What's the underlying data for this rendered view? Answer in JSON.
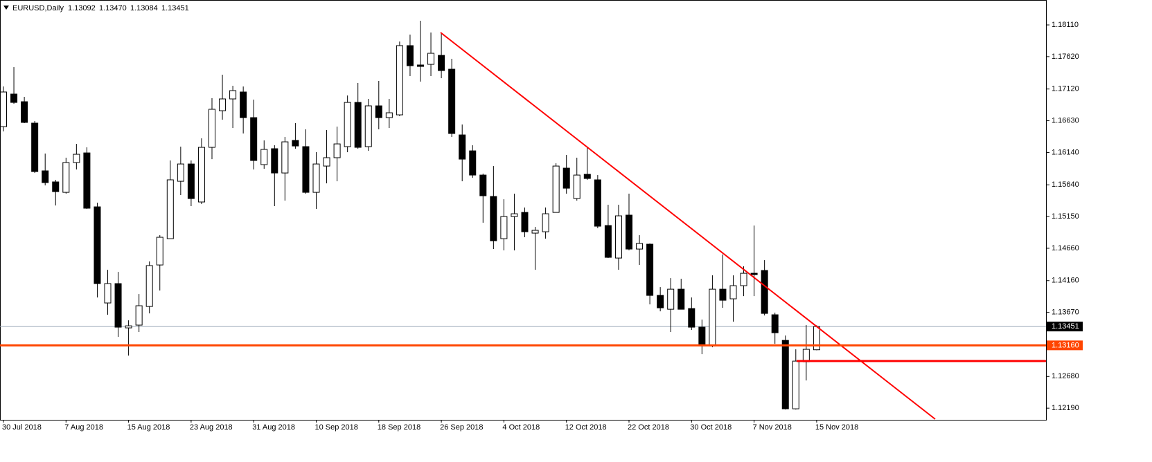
{
  "header": {
    "symbol": "EURUSD,Daily",
    "ohlc": [
      "1.13092",
      "1.13470",
      "1.13084",
      "1.13451"
    ]
  },
  "chart_data": {
    "type": "candlestick",
    "categories": [
      "30 Jul 2018",
      null,
      null,
      null,
      null,
      null,
      "7 Aug 2018",
      null,
      null,
      null,
      null,
      null,
      "15 Aug 2018",
      null,
      null,
      null,
      null,
      null,
      "23 Aug 2018",
      null,
      null,
      null,
      null,
      null,
      "31 Aug 2018",
      null,
      null,
      null,
      null,
      null,
      "10 Sep 2018",
      null,
      null,
      null,
      null,
      null,
      "18 Sep 2018",
      null,
      null,
      null,
      null,
      null,
      "26 Sep 2018",
      null,
      null,
      null,
      null,
      null,
      "4 Oct 2018",
      null,
      null,
      null,
      null,
      null,
      "12 Oct 2018",
      null,
      null,
      null,
      null,
      null,
      "22 Oct 2018",
      null,
      null,
      null,
      null,
      null,
      "30 Oct 2018",
      null,
      null,
      null,
      null,
      null,
      "7 Nov 2018",
      null,
      null,
      null,
      null,
      null,
      "15 Nov 2018"
    ],
    "open": [
      1.16539,
      1.17042,
      1.16924,
      1.16593,
      1.15856,
      1.15685,
      1.15524,
      1.15984,
      1.16133,
      1.153,
      1.13815,
      1.14114,
      1.1343,
      1.13473,
      1.13761,
      1.14402,
      1.14808,
      1.15695,
      1.15962,
      1.15375,
      1.16219,
      1.16785,
      1.16967,
      1.17074,
      1.16678,
      1.15952,
      1.16198,
      1.15823,
      1.16326,
      1.1623,
      1.15524,
      1.1593,
      1.16059,
      1.1623,
      1.16913,
      1.1623,
      1.1686,
      1.16678,
      1.16721,
      1.1779,
      1.17491,
      1.17501,
      1.1764,
      1.17426,
      1.16411,
      1.16165,
      1.15791,
      1.1546,
      1.14808,
      1.1515,
      1.15214,
      1.14894,
      1.14915,
      1.15214,
      1.15898,
      1.15428,
      1.15802,
      1.15717,
      1.15011,
      1.14509,
      1.15172,
      1.14648,
      1.14723,
      1.13932,
      1.13718,
      1.14028,
      1.13729,
      1.13441,
      1.13152,
      1.14028,
      1.13879,
      1.14082,
      1.14274,
      1.14317,
      1.13633,
      1.13237,
      1.1218,
      1.12906,
      1.13092
    ],
    "high": [
      1.17159,
      1.17458,
      1.16999,
      1.16625,
      1.16123,
      1.15717,
      1.16059,
      1.16272,
      1.16219,
      1.15364,
      1.14327,
      1.14295,
      1.13547,
      1.13953,
      1.14456,
      1.14862,
      1.16016,
      1.1623,
      1.16016,
      1.16358,
      1.16978,
      1.17341,
      1.1717,
      1.17159,
      1.16956,
      1.16326,
      1.16251,
      1.16379,
      1.16593,
      1.16497,
      1.16144,
      1.16486,
      1.16539,
      1.1702,
      1.17213,
      1.16967,
      1.17245,
      1.16967,
      1.17854,
      1.17961,
      1.18174,
      1.17993,
      1.17993,
      1.17587,
      1.16572,
      1.16251,
      1.15813,
      1.1593,
      1.15417,
      1.15503,
      1.15289,
      1.1499,
      1.15289,
      1.15973,
      1.16101,
      1.16059,
      1.16219,
      1.15791,
      1.15332,
      1.15332,
      1.15503,
      1.14862,
      1.14734,
      1.1406,
      1.14199,
      1.14189,
      1.139,
      1.13558,
      1.14242,
      1.14563,
      1.14242,
      1.14381,
      1.15011,
      1.14477,
      1.13665,
      1.13312,
      1.13099,
      1.13473,
      1.1347
    ],
    "low": [
      1.16465,
      1.16892,
      1.16593,
      1.15823,
      1.15631,
      1.15321,
      1.15503,
      1.15877,
      1.15268,
      1.139,
      1.13633,
      1.13291,
      1.13002,
      1.13366,
      1.13654,
      1.14007,
      1.14808,
      1.15482,
      1.15311,
      1.15343,
      1.16037,
      1.16646,
      1.16518,
      1.16433,
      1.15877,
      1.15888,
      1.15311,
      1.15396,
      1.16198,
      1.15503,
      1.15268,
      1.15663,
      1.15695,
      1.16144,
      1.16198,
      1.16165,
      1.16497,
      1.16518,
      1.167,
      1.1732,
      1.17234,
      1.1732,
      1.17287,
      1.16379,
      1.15695,
      1.15749,
      1.15054,
      1.14648,
      1.14627,
      1.14627,
      1.1483,
      1.14327,
      1.14808,
      1.15214,
      1.15503,
      1.15396,
      1.15717,
      1.14969,
      1.14509,
      1.14327,
      1.14627,
      1.14402,
      1.13793,
      1.13686,
      1.13366,
      1.13718,
      1.13398,
      1.13024,
      1.13131,
      1.1374,
      1.13526,
      1.13921,
      1.13921,
      1.13622,
      1.13184,
      1.12169,
      1.12169,
      1.12618,
      1.13084
    ],
    "close": [
      1.17074,
      1.16913,
      1.16604,
      1.15845,
      1.15674,
      1.15535,
      1.15984,
      1.16112,
      1.15279,
      1.14114,
      1.14114,
      1.13441,
      1.13462,
      1.13772,
      1.14392,
      1.1483,
      1.15717,
      1.15962,
      1.15428,
      1.16219,
      1.16807,
      1.16967,
      1.17095,
      1.16678,
      1.16016,
      1.16187,
      1.15823,
      1.16304,
      1.1624,
      1.15524,
      1.15962,
      1.16059,
      1.16272,
      1.16913,
      1.16219,
      1.1686,
      1.16678,
      1.16753,
      1.1779,
      1.1748,
      1.17469,
      1.17672,
      1.17405,
      1.16433,
      1.16037,
      1.15791,
      1.15471,
      1.14776,
      1.1515,
      1.15193,
      1.14915,
      1.14937,
      1.15193,
      1.1593,
      1.15588,
      1.15791,
      1.15738,
      1.15001,
      1.1452,
      1.15161,
      1.14648,
      1.14734,
      1.13932,
      1.1374,
      1.14028,
      1.13718,
      1.13441,
      1.13152,
      1.14028,
      1.13857,
      1.14082,
      1.14274,
      1.14253,
      1.13654,
      1.13355,
      1.1218,
      1.12917,
      1.13099,
      1.13451
    ],
    "ylim": [
      1.1201,
      1.18495
    ],
    "yticks": [
      {
        "value": 1.1811,
        "label": "1.18110"
      },
      {
        "value": 1.1762,
        "label": "1.17620"
      },
      {
        "value": 1.1712,
        "label": "1.17120"
      },
      {
        "value": 1.1663,
        "label": "1.16630"
      },
      {
        "value": 1.1614,
        "label": "1.16140"
      },
      {
        "value": 1.1564,
        "label": "1.15640"
      },
      {
        "value": 1.1515,
        "label": "1.15150"
      },
      {
        "value": 1.1466,
        "label": "1.14660"
      },
      {
        "value": 1.1416,
        "label": "1.14160"
      },
      {
        "value": 1.1367,
        "label": "1.13670"
      },
      {
        "value": 1.1268,
        "label": "1.12680"
      },
      {
        "value": 1.1219,
        "label": "1.12190"
      }
    ],
    "current_price": {
      "value": 1.13451,
      "label": "1.13451"
    },
    "hline": {
      "value": 1.1316,
      "label": "1.13160",
      "color": "#ff4500"
    },
    "up_color": "#ffffff",
    "down_color": "#000000",
    "grid": false
  }
}
